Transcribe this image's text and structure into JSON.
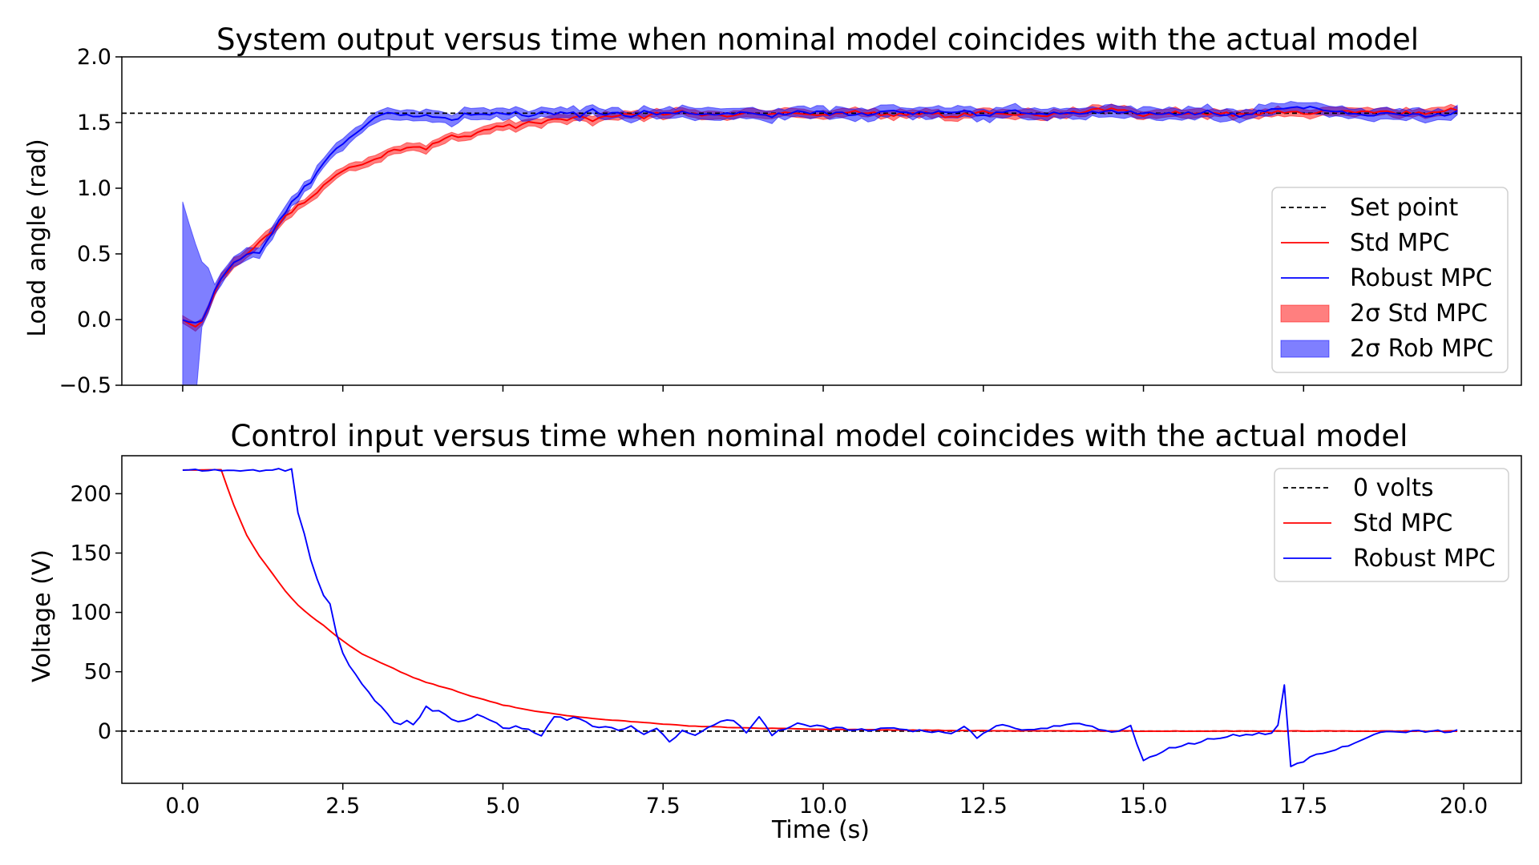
{
  "chart_data": [
    {
      "type": "line",
      "title": "System output versus time when nominal model coincides with the actual model",
      "xlabel": "",
      "ylabel": "Load angle (rad)",
      "xlim": [
        -0.95,
        20.9
      ],
      "ylim": [
        -0.5,
        2.0
      ],
      "xticks": [
        0.0,
        2.5,
        5.0,
        7.5,
        10.0,
        12.5,
        15.0,
        17.5,
        20.0
      ],
      "xtick_labels_visible": false,
      "yticks": [
        -0.5,
        0.0,
        0.5,
        1.0,
        1.5,
        2.0
      ],
      "ytick_labels": [
        "−0.5",
        "0.0",
        "0.5",
        "1.0",
        "1.5",
        "2.0"
      ],
      "grid": false,
      "legend_position": "center-right",
      "legend": [
        "Set point",
        "Std MPC",
        "Robust MPC",
        "2σ Std MPC",
        "2σ Rob MPC"
      ],
      "colors": {
        "setpoint": "#000000",
        "std": "#ff0000",
        "robust": "#0000ff",
        "std_band": "#ff0000",
        "rob_band": "#0000ff"
      },
      "setpoint": 1.5708,
      "series": [
        {
          "name": "Std MPC",
          "x": [
            0.0,
            0.1,
            0.2,
            0.3,
            0.4,
            0.5,
            0.6,
            0.8,
            1.0,
            1.2,
            1.4,
            1.6,
            1.8,
            2.0,
            2.2,
            2.4,
            2.6,
            2.8,
            3.0,
            3.2,
            3.4,
            3.6,
            3.8,
            4.0,
            4.2,
            4.4,
            4.6,
            4.8,
            5.0,
            5.2,
            5.4,
            5.6,
            5.8,
            6.0,
            6.2,
            6.4,
            6.6,
            6.8,
            7.0,
            7.2,
            7.4,
            7.6,
            7.8,
            8.0,
            8.4,
            8.8,
            9.2,
            9.6,
            10.0,
            10.5,
            11.0,
            11.5,
            12.0,
            12.5,
            13.0,
            13.5,
            14.0,
            14.5,
            15.0,
            15.5,
            16.0,
            16.5,
            17.0,
            17.5,
            18.0,
            18.5,
            19.0,
            19.5,
            19.9
          ],
          "y": [
            0.0,
            -0.03,
            -0.05,
            -0.02,
            0.08,
            0.2,
            0.3,
            0.42,
            0.5,
            0.58,
            0.68,
            0.78,
            0.86,
            0.93,
            1.02,
            1.1,
            1.15,
            1.18,
            1.22,
            1.27,
            1.3,
            1.31,
            1.29,
            1.36,
            1.4,
            1.38,
            1.42,
            1.45,
            1.48,
            1.47,
            1.52,
            1.5,
            1.53,
            1.52,
            1.55,
            1.51,
            1.55,
            1.54,
            1.57,
            1.53,
            1.58,
            1.56,
            1.59,
            1.56,
            1.55,
            1.58,
            1.56,
            1.57,
            1.56,
            1.58,
            1.56,
            1.57,
            1.55,
            1.58,
            1.57,
            1.55,
            1.58,
            1.6,
            1.56,
            1.58,
            1.57,
            1.56,
            1.58,
            1.57,
            1.58,
            1.59,
            1.57,
            1.58,
            1.6
          ],
          "band_half_width": 0.03
        },
        {
          "name": "Robust MPC",
          "x": [
            0.0,
            0.1,
            0.2,
            0.3,
            0.4,
            0.5,
            0.6,
            0.8,
            1.0,
            1.2,
            1.4,
            1.6,
            1.8,
            2.0,
            2.2,
            2.4,
            2.6,
            2.8,
            3.0,
            3.2,
            3.4,
            3.6,
            3.8,
            4.0,
            4.2,
            4.4,
            4.6,
            4.8,
            5.0,
            5.2,
            5.4,
            5.6,
            5.8,
            6.0,
            6.2,
            6.4,
            6.6,
            6.8,
            7.0,
            7.2,
            7.4,
            7.6,
            7.8,
            8.0,
            8.4,
            8.8,
            9.2,
            9.6,
            10.0,
            10.5,
            11.0,
            11.5,
            12.0,
            12.5,
            13.0,
            13.5,
            14.0,
            14.5,
            15.0,
            15.5,
            16.0,
            16.5,
            17.0,
            17.5,
            18.0,
            18.5,
            19.0,
            19.5,
            19.9
          ],
          "y": [
            0.0,
            -0.02,
            -0.03,
            0.0,
            0.1,
            0.22,
            0.32,
            0.44,
            0.5,
            0.52,
            0.66,
            0.82,
            0.95,
            1.05,
            1.2,
            1.3,
            1.38,
            1.46,
            1.53,
            1.57,
            1.56,
            1.54,
            1.56,
            1.55,
            1.52,
            1.56,
            1.55,
            1.57,
            1.56,
            1.58,
            1.54,
            1.57,
            1.56,
            1.58,
            1.55,
            1.59,
            1.56,
            1.58,
            1.55,
            1.6,
            1.57,
            1.56,
            1.59,
            1.57,
            1.56,
            1.57,
            1.55,
            1.58,
            1.57,
            1.56,
            1.58,
            1.57,
            1.59,
            1.56,
            1.58,
            1.57,
            1.56,
            1.59,
            1.57,
            1.56,
            1.58,
            1.55,
            1.6,
            1.62,
            1.58,
            1.56,
            1.57,
            1.55,
            1.58
          ],
          "band_half_width": 0.04
        }
      ]
    },
    {
      "type": "line",
      "title": "Control input versus time when nominal model coincides with the actual model",
      "xlabel": "Time (s)",
      "ylabel": "Voltage (V)",
      "xlim": [
        -0.95,
        20.9
      ],
      "ylim": [
        -44,
        232
      ],
      "xticks": [
        0.0,
        2.5,
        5.0,
        7.5,
        10.0,
        12.5,
        15.0,
        17.5,
        20.0
      ],
      "xtick_labels": [
        "0.0",
        "2.5",
        "5.0",
        "7.5",
        "10.0",
        "12.5",
        "15.0",
        "17.5",
        "20.0"
      ],
      "yticks": [
        0,
        50,
        100,
        150,
        200
      ],
      "ytick_labels": [
        "0",
        "50",
        "100",
        "150",
        "200"
      ],
      "grid": false,
      "legend_position": "top-right",
      "legend": [
        "0 volts",
        "Std MPC",
        "Robust MPC"
      ],
      "colors": {
        "zero": "#000000",
        "std": "#ff0000",
        "robust": "#0000ff"
      },
      "zero_line": 0,
      "series": [
        {
          "name": "Std MPC",
          "x": [
            0.0,
            0.6,
            0.8,
            1.0,
            1.2,
            1.4,
            1.6,
            1.8,
            2.0,
            2.2,
            2.4,
            2.6,
            2.8,
            3.0,
            3.2,
            3.4,
            3.6,
            3.8,
            4.0,
            4.2,
            4.4,
            4.6,
            4.8,
            5.0,
            5.5,
            6.0,
            6.5,
            7.0,
            7.5,
            8.0,
            9.0,
            10.0,
            11.0,
            12.0,
            13.0,
            14.0,
            15.0,
            16.0,
            17.0,
            18.0,
            19.0,
            19.9
          ],
          "y": [
            220,
            220,
            190,
            165,
            147,
            133,
            118,
            106,
            97,
            89,
            80,
            72,
            65,
            60,
            55,
            50,
            45,
            41,
            38,
            35,
            31,
            28,
            25,
            22,
            17,
            13,
            10,
            8,
            6,
            4,
            2.5,
            1.5,
            1,
            0.5,
            0.3,
            0,
            0,
            0,
            0,
            0,
            0,
            0
          ],
          "noise_amplitude": 0.8
        },
        {
          "name": "Robust MPC",
          "x": [
            0.0,
            1.72,
            1.8,
            1.9,
            2.0,
            2.1,
            2.2,
            2.3,
            2.4,
            2.5,
            2.6,
            2.7,
            2.8,
            2.9,
            3.0,
            3.1,
            3.2,
            3.3,
            3.4,
            3.5,
            3.6,
            3.7,
            3.8,
            3.9,
            4.0,
            4.2,
            4.4,
            4.6,
            4.8,
            5.0,
            5.2,
            5.4,
            5.6,
            5.8,
            6.0,
            6.2,
            6.4,
            6.6,
            6.8,
            7.0,
            7.2,
            7.4,
            7.6,
            7.8,
            8.0,
            8.2,
            8.4,
            8.6,
            8.8,
            9.0,
            9.2,
            9.4,
            9.6,
            10.0,
            10.5,
            11.0,
            11.5,
            12.0,
            12.2,
            12.4,
            12.6,
            12.8,
            13.0,
            13.5,
            14.0,
            14.2,
            14.5,
            14.8,
            15.0,
            15.2,
            15.4,
            15.8,
            16.2,
            16.6,
            17.0,
            17.1,
            17.2,
            17.3,
            17.5,
            17.7,
            18.0,
            18.3,
            18.6,
            19.0,
            19.5,
            19.9
          ],
          "y": [
            220,
            220,
            185,
            165,
            145,
            128,
            115,
            107,
            82,
            66,
            55,
            48,
            40,
            33,
            25,
            20,
            14,
            7,
            6,
            8,
            5,
            12,
            21,
            18,
            18,
            10,
            8,
            13,
            10,
            2,
            4,
            1,
            -5,
            12,
            10,
            11,
            3,
            4,
            1,
            5,
            -2,
            3,
            -10,
            1,
            -3,
            3,
            8,
            9,
            -2,
            12,
            -3,
            2,
            6,
            3,
            1,
            2,
            0,
            -1,
            3,
            -5,
            2,
            5,
            1,
            3,
            6,
            3,
            -1,
            4,
            -25,
            -20,
            -15,
            -10,
            -5,
            -3,
            -2,
            5,
            39,
            -30,
            -25,
            -20,
            -16,
            -10,
            -2,
            0,
            0,
            0
          ],
          "noise_amplitude": 4
        }
      ]
    }
  ]
}
